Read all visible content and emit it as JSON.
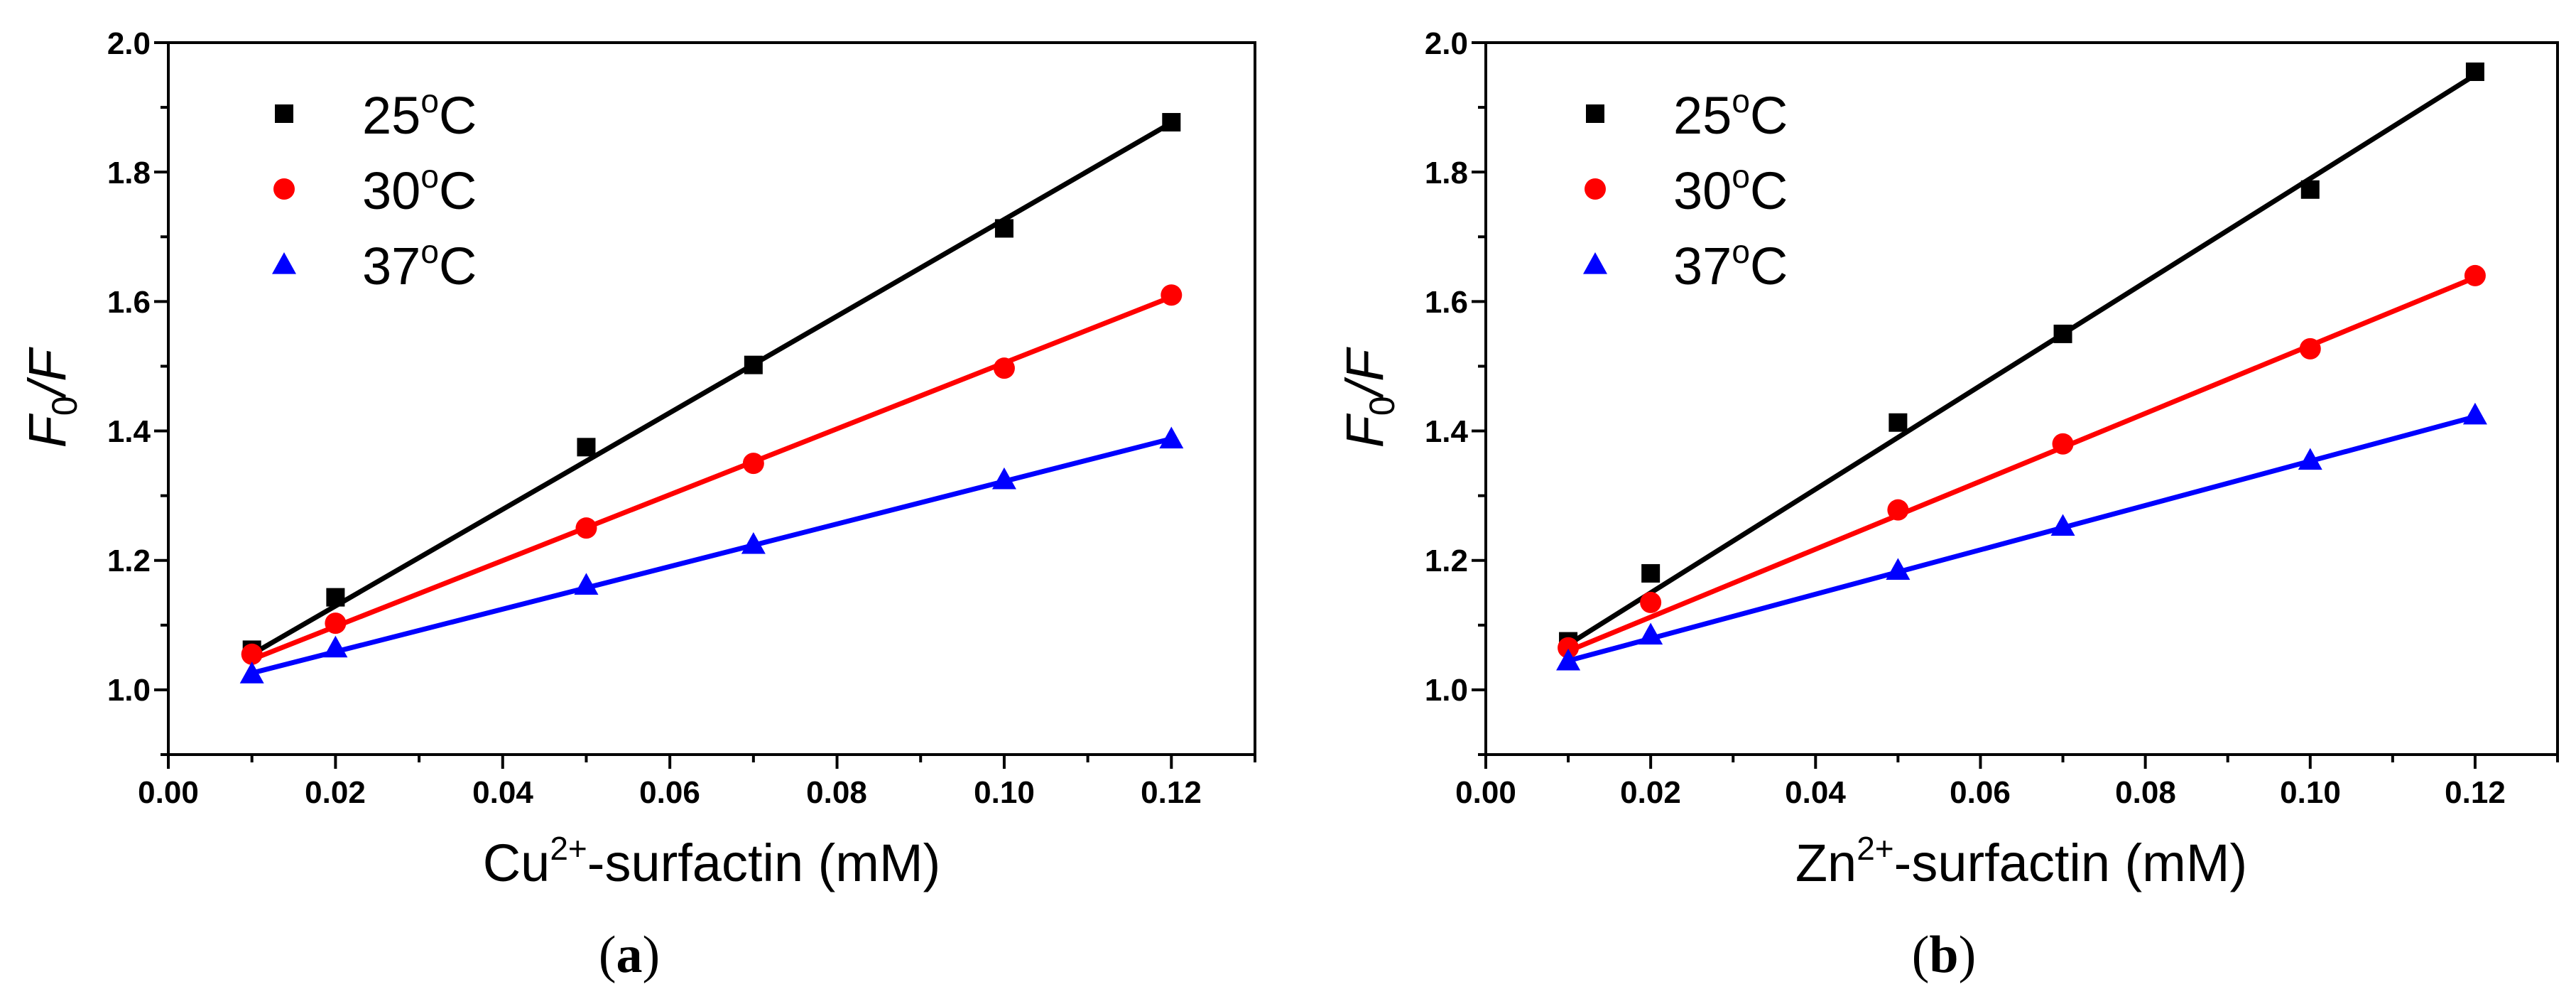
{
  "chart_data": [
    {
      "type": "scatter",
      "panel_label": "a",
      "xlabel": {
        "pre": "Cu",
        "sup": "2+",
        "post": "-surfactin (mM)"
      },
      "ylabel": {
        "main": "F",
        "sub": "0",
        "tail": "/F"
      },
      "xlim": [
        0.0,
        0.13
      ],
      "ylim": [
        0.9,
        2.0
      ],
      "xticks": [
        "0.00",
        "0.02",
        "0.04",
        "0.06",
        "0.08",
        "0.10",
        "0.12"
      ],
      "yticks": [
        "1.0",
        "1.2",
        "1.4",
        "1.6",
        "1.8",
        "2.0"
      ],
      "x": [
        0.01,
        0.02,
        0.05,
        0.07,
        0.1,
        0.12
      ],
      "legend_position": "top-left",
      "series": [
        {
          "name": "25°C",
          "label_num": "25",
          "marker": "square",
          "color": "#000000",
          "values": [
            1.062,
            1.143,
            1.375,
            1.502,
            1.713,
            1.877
          ],
          "fit": [
            1.055,
            1.876
          ]
        },
        {
          "name": "30°C",
          "label_num": "30",
          "marker": "circle",
          "color": "#ff0000",
          "values": [
            1.055,
            1.103,
            1.25,
            1.35,
            1.497,
            1.61
          ],
          "fit": [
            1.047,
            1.607
          ]
        },
        {
          "name": "37°C",
          "label_num": "37",
          "marker": "triangle",
          "color": "#0000ff",
          "values": [
            1.025,
            1.065,
            1.162,
            1.225,
            1.325,
            1.388
          ],
          "fit": [
            1.026,
            1.388
          ]
        }
      ]
    },
    {
      "type": "scatter",
      "panel_label": "b",
      "xlabel": {
        "pre": "Zn",
        "sup": "2+",
        "post": "-surfactin (mM)"
      },
      "ylabel": {
        "main": "F",
        "sub": "0",
        "tail": "/F"
      },
      "xlim": [
        0.0,
        0.13
      ],
      "ylim": [
        0.9,
        2.0
      ],
      "xticks": [
        "0.00",
        "0.02",
        "0.04",
        "0.06",
        "0.08",
        "0.10",
        "0.12"
      ],
      "yticks": [
        "1.0",
        "1.2",
        "1.4",
        "1.6",
        "1.8",
        "2.0"
      ],
      "x": [
        0.01,
        0.02,
        0.05,
        0.07,
        0.1,
        0.12
      ],
      "legend_position": "top-left",
      "series": [
        {
          "name": "25°C",
          "label_num": "25",
          "marker": "square",
          "color": "#000000",
          "values": [
            1.075,
            1.18,
            1.413,
            1.55,
            1.773,
            1.955
          ],
          "fit": [
            1.07,
            1.95
          ]
        },
        {
          "name": "30°C",
          "label_num": "30",
          "marker": "circle",
          "color": "#ff0000",
          "values": [
            1.065,
            1.135,
            1.278,
            1.38,
            1.527,
            1.64
          ],
          "fit": [
            1.06,
            1.637
          ]
        },
        {
          "name": "37°C",
          "label_num": "37",
          "marker": "triangle",
          "color": "#0000ff",
          "values": [
            1.045,
            1.085,
            1.185,
            1.253,
            1.355,
            1.425
          ],
          "fit": [
            1.045,
            1.422
          ]
        }
      ]
    }
  ]
}
